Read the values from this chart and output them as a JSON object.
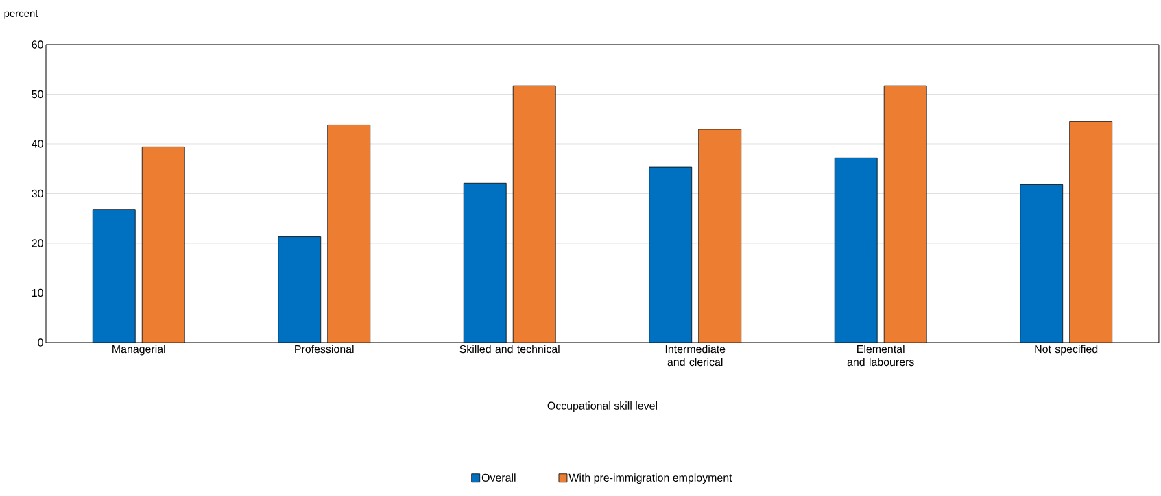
{
  "chart_data": {
    "type": "bar",
    "xlabel": "Occupational skill level",
    "ylabel": "percent",
    "categories": [
      "Managerial",
      "Professional",
      "Skilled and technical",
      "Intermediate and clerical",
      "Elemental and labourers",
      "Not specified"
    ],
    "series": [
      {
        "name": "Overall",
        "color": "#0070c0",
        "values": [
          26.8,
          21.3,
          32.1,
          35.3,
          37.2,
          31.8
        ]
      },
      {
        "name": "With pre-immigration employment",
        "color": "#ed7d31",
        "values": [
          39.4,
          43.8,
          51.7,
          42.9,
          51.7,
          44.5
        ]
      }
    ],
    "ylim": [
      0,
      60
    ],
    "yticks": [
      0,
      10,
      20,
      30,
      40,
      50,
      60
    ],
    "grid": "y",
    "legend": "bottom"
  }
}
